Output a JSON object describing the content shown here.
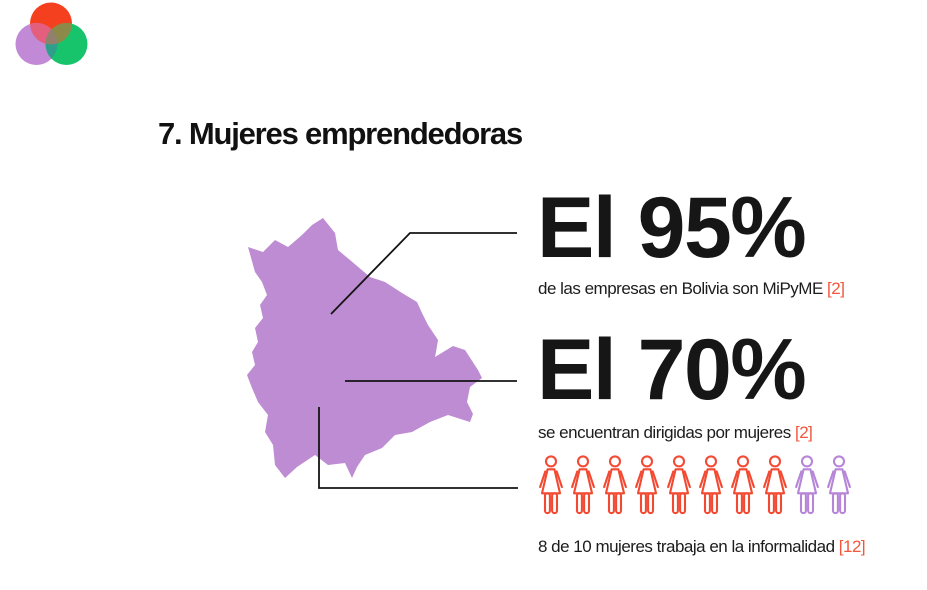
{
  "title": "7. Mujeres emprendedoras",
  "logo": {
    "red": "#f5401f",
    "purple": "#c289d6",
    "green": "#17c46c",
    "overlap_red_purple": "#e45f7e",
    "overlap_red_green": "#8d8a49",
    "overlap_purple_green": "#2d9f8a",
    "overlap_center": "#91806e"
  },
  "map": {
    "country": "Bolivia",
    "fill": "#be8cd2",
    "line_color": "#141414"
  },
  "stats": [
    {
      "value": "El 95%",
      "caption": "de las empresas en Bolivia son MiPyME",
      "ref": "[2]"
    },
    {
      "value": "El 70%",
      "caption": "se encuentran dirigidas por mujeres",
      "ref": "[2]"
    }
  ],
  "pictogram": {
    "caption": "8 de 10 mujeres trabaja en la informalidad",
    "ref": "[12]",
    "total": 10,
    "highlighted": 8,
    "highlight_color": "#f24a32",
    "rest_color": "#b685d8"
  },
  "accent_red": "#f4563b",
  "background": "#ffffff"
}
